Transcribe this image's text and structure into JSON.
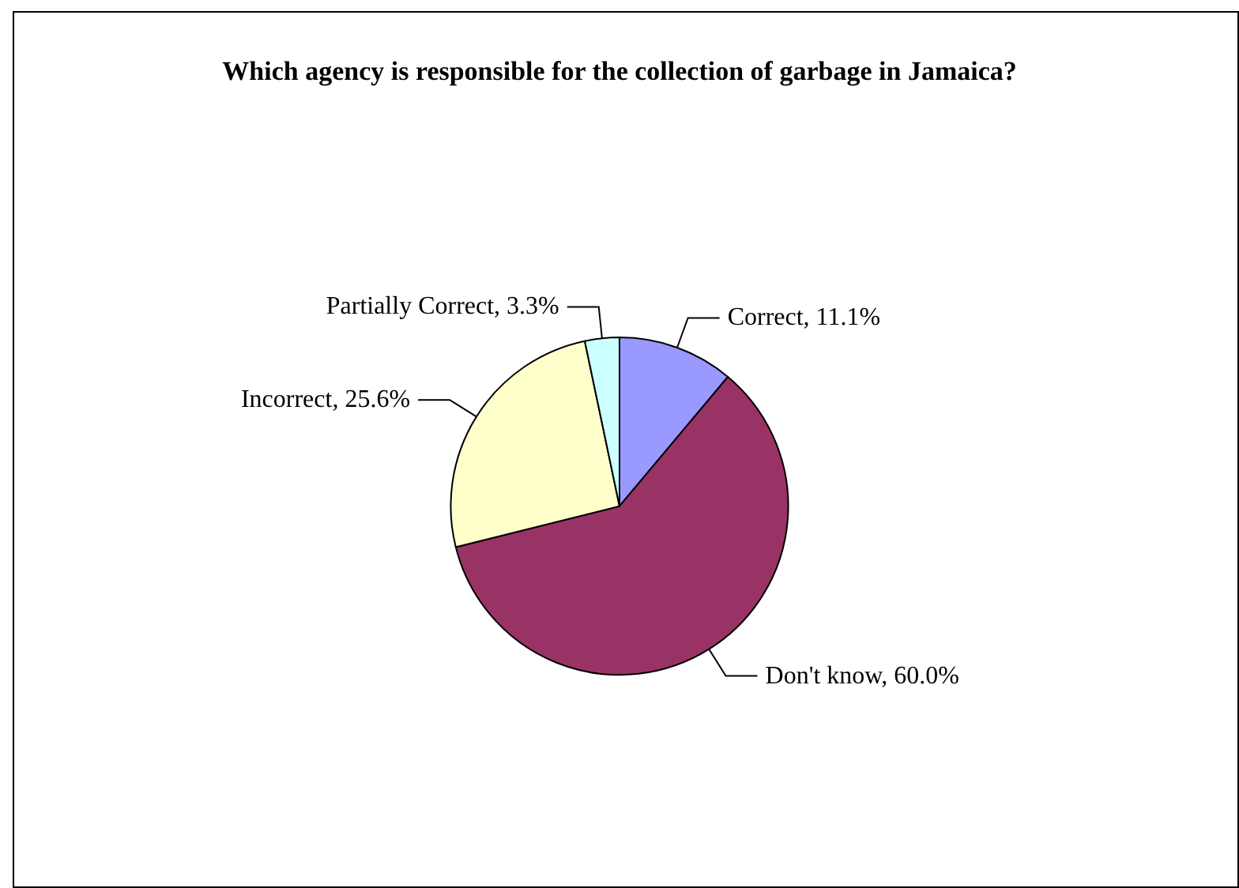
{
  "chart_data": {
    "type": "pie",
    "title": "Which agency is responsible for the collection of garbage in Jamaica?",
    "categories": [
      "Correct",
      "Don't know",
      "Incorrect",
      "Partially Correct"
    ],
    "values": [
      11.1,
      60.0,
      25.6,
      3.3
    ],
    "value_labels": [
      "11.1%",
      "60.0%",
      "25.6%",
      "3.3%"
    ],
    "colors": [
      "#9999ff",
      "#993366",
      "#ffffcc",
      "#ccffff"
    ],
    "legend": false
  }
}
